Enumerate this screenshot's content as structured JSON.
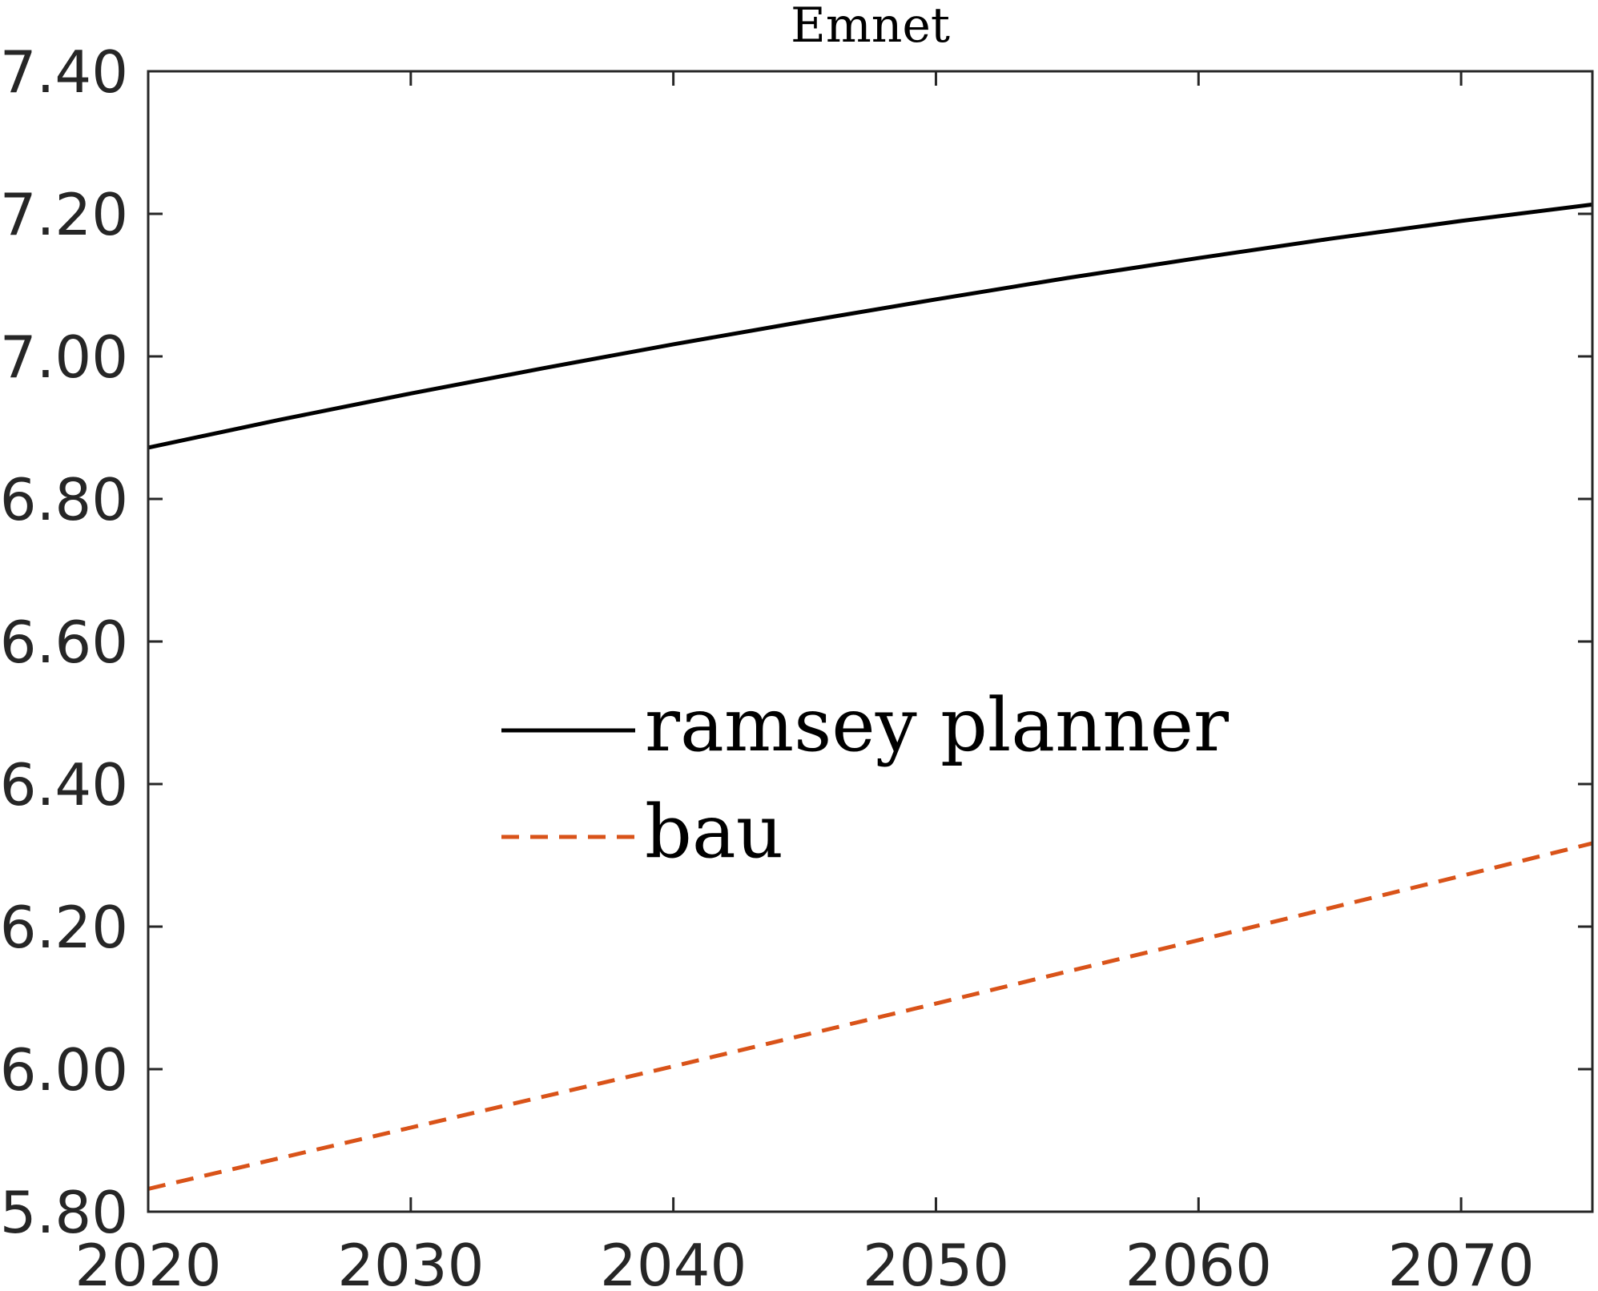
{
  "chart_data": {
    "type": "line",
    "title": "Emnet",
    "xlabel": "",
    "ylabel": "",
    "xlim": [
      2020,
      2075
    ],
    "ylim": [
      5.8,
      7.4
    ],
    "xticks": [
      2020,
      2030,
      2040,
      2050,
      2060,
      2070
    ],
    "xtick_labels": [
      "2020",
      "2030",
      "2040",
      "2050",
      "2060",
      "2070"
    ],
    "yticks": [
      5.8,
      6.0,
      6.2,
      6.4,
      6.6,
      6.8,
      7.0,
      7.2,
      7.4
    ],
    "ytick_labels": [
      "5.80",
      "6.00",
      "6.20",
      "6.40",
      "6.60",
      "6.80",
      "7.00",
      "7.20",
      "7.40"
    ],
    "grid": false,
    "legend_position": "center",
    "series": [
      {
        "name": "ramsey planner",
        "color": "#000000",
        "style": "solid",
        "x": [
          2020,
          2025,
          2030,
          2035,
          2040,
          2045,
          2050,
          2055,
          2060,
          2065,
          2070,
          2075
        ],
        "y": [
          6.872,
          6.911,
          6.948,
          6.983,
          7.017,
          7.049,
          7.08,
          7.11,
          7.138,
          7.165,
          7.19,
          7.213
        ]
      },
      {
        "name": "bau",
        "color": "#D95319",
        "style": "dashed",
        "x": [
          2020,
          2025,
          2030,
          2035,
          2040,
          2045,
          2050,
          2055,
          2060,
          2065,
          2070,
          2075
        ],
        "y": [
          5.832,
          5.875,
          5.918,
          5.961,
          6.004,
          6.048,
          6.092,
          6.137,
          6.181,
          6.226,
          6.271,
          6.317
        ]
      }
    ]
  }
}
